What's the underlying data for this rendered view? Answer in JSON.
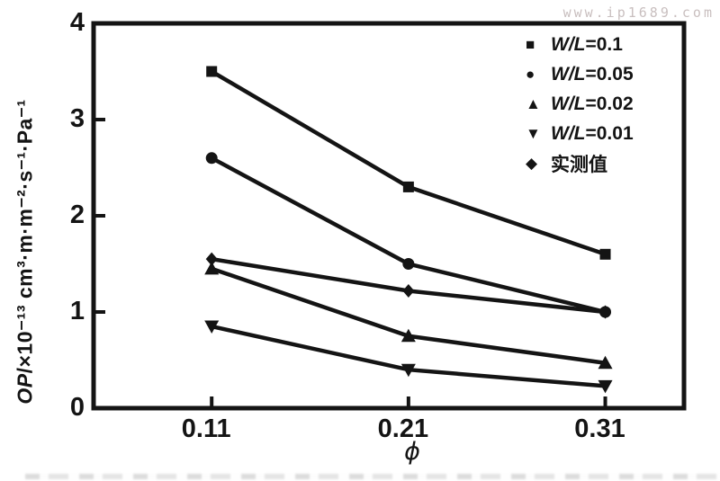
{
  "watermark": "www.ip1689.com",
  "colors": {
    "line": "#141414",
    "frame": "#141414",
    "text": "#141414",
    "watermark": "#c9bfbf"
  },
  "chart_data": {
    "type": "line",
    "x": [
      0.11,
      0.21,
      0.31
    ],
    "x_tick_labels": [
      "0.11",
      "0.21",
      "0.31"
    ],
    "xlabel": "ϕ",
    "ylabel_italic": "OP",
    "ylabel_rest": "/×10⁻¹³ cm³·m·m⁻²·s⁻¹·Pa⁻¹",
    "y_ticks": [
      0,
      1,
      2,
      3,
      4
    ],
    "y_tick_labels": [
      "0",
      "1",
      "2",
      "3",
      "4"
    ],
    "ylim": [
      0,
      4
    ],
    "grid": false,
    "legend_position": "top-right-inside",
    "series": [
      {
        "name": "W/L=0.1",
        "label_prefix": "W/L",
        "label_rest": "=0.1",
        "marker": "square",
        "values": [
          3.5,
          2.3,
          1.6
        ]
      },
      {
        "name": "W/L=0.05",
        "label_prefix": "W/L",
        "label_rest": "=0.05",
        "marker": "circle",
        "values": [
          2.6,
          1.5,
          1.0
        ]
      },
      {
        "name": "W/L=0.02",
        "label_prefix": "W/L",
        "label_rest": "=0.02",
        "marker": "triangle-up",
        "values": [
          1.45,
          0.75,
          0.47
        ]
      },
      {
        "name": "W/L=0.01",
        "label_prefix": "W/L",
        "label_rest": "=0.01",
        "marker": "triangle-down",
        "values": [
          0.85,
          0.4,
          0.23
        ]
      },
      {
        "name": "实测值",
        "label_prefix": "",
        "label_rest": "实测值",
        "marker": "diamond",
        "values": [
          1.55,
          1.22,
          1.0
        ]
      }
    ]
  }
}
